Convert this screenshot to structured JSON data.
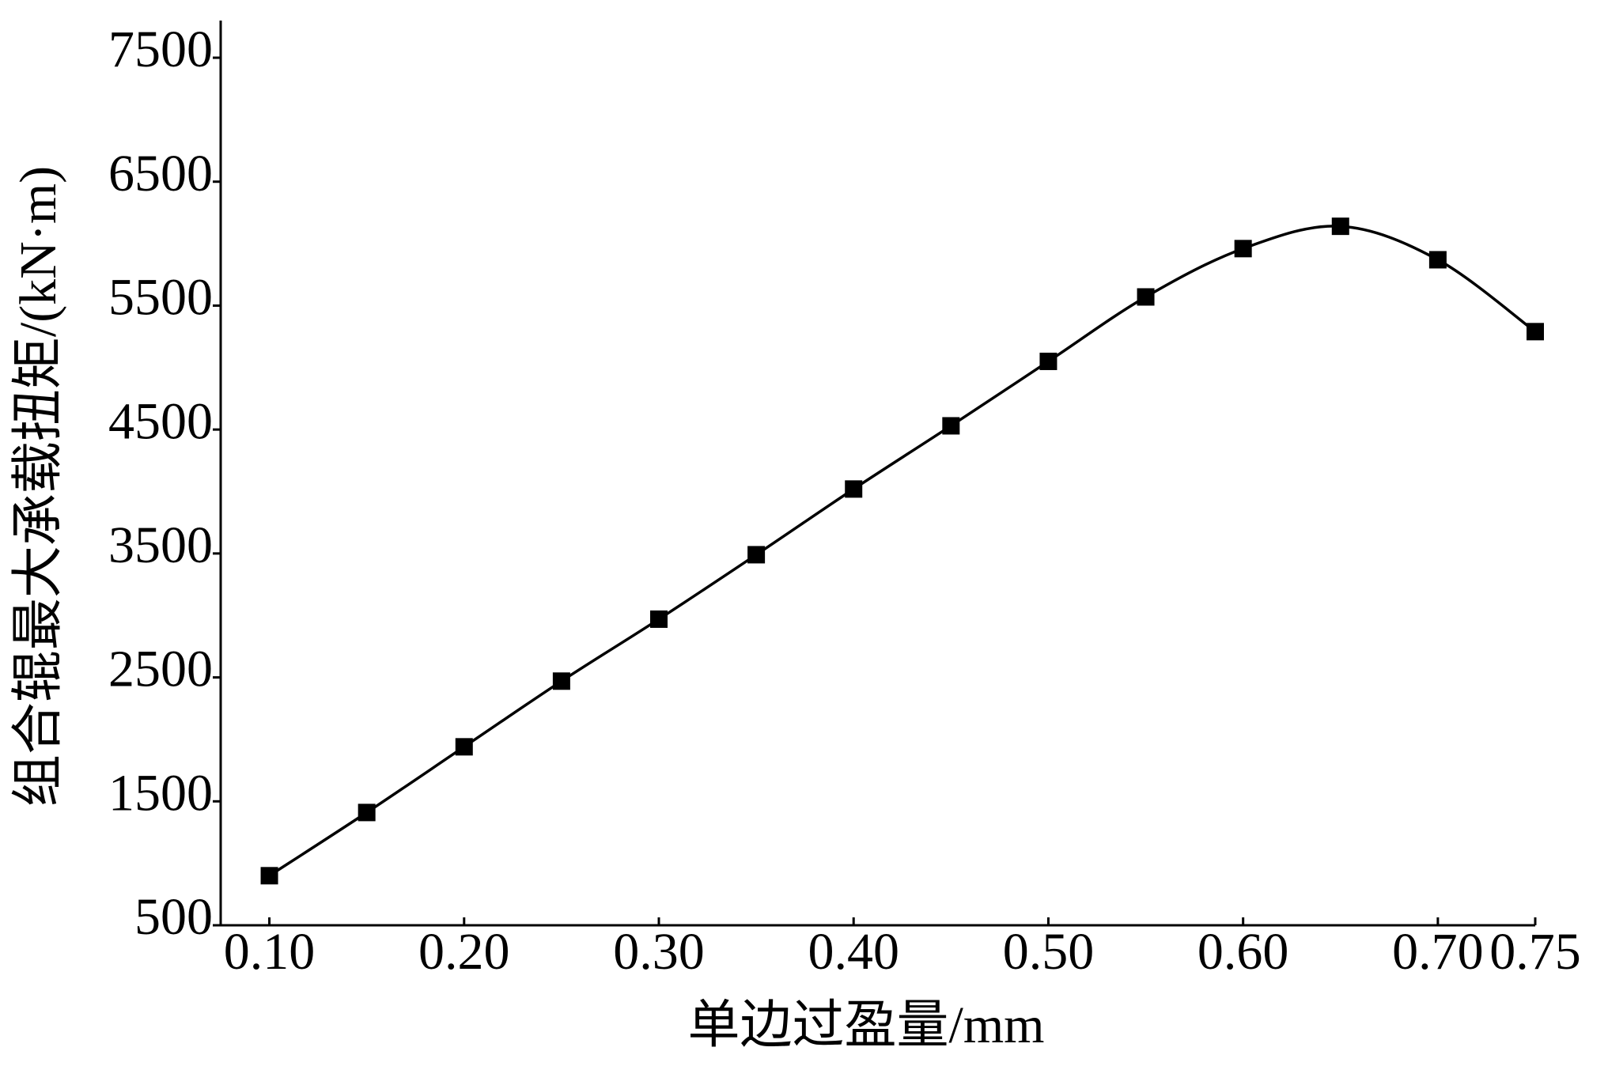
{
  "chart_data": {
    "type": "line",
    "x_label": "单边过盈量/mm",
    "y_label": "组合辊最大承载扭矩/(kN·m)",
    "x": [
      0.1,
      0.15,
      0.2,
      0.25,
      0.3,
      0.35,
      0.4,
      0.45,
      0.5,
      0.55,
      0.6,
      0.65,
      0.7,
      0.75
    ],
    "series": [
      {
        "color": "#000000",
        "marker": "square",
        "values": [
          900,
          1410,
          1940,
          2470,
          2970,
          3490,
          4020,
          4530,
          5050,
          5570,
          5960,
          6140,
          5870,
          5290
        ]
      }
    ],
    "xlim": [
      0.075,
      0.75
    ],
    "xticks": [
      {
        "value": 0.1,
        "label": "0.10"
      },
      {
        "value": 0.2,
        "label": "0.20"
      },
      {
        "value": 0.3,
        "label": "0.30"
      },
      {
        "value": 0.4,
        "label": "0.40"
      },
      {
        "value": 0.5,
        "label": "0.50"
      },
      {
        "value": 0.6,
        "label": "0.60"
      },
      {
        "value": 0.7,
        "label": "0.70"
      },
      0.75
    ],
    "ylim": [
      500,
      7800
    ],
    "yticks": [
      500,
      1500,
      2500,
      3500,
      4500,
      5500,
      6500,
      7500
    ],
    "grid": false
  }
}
